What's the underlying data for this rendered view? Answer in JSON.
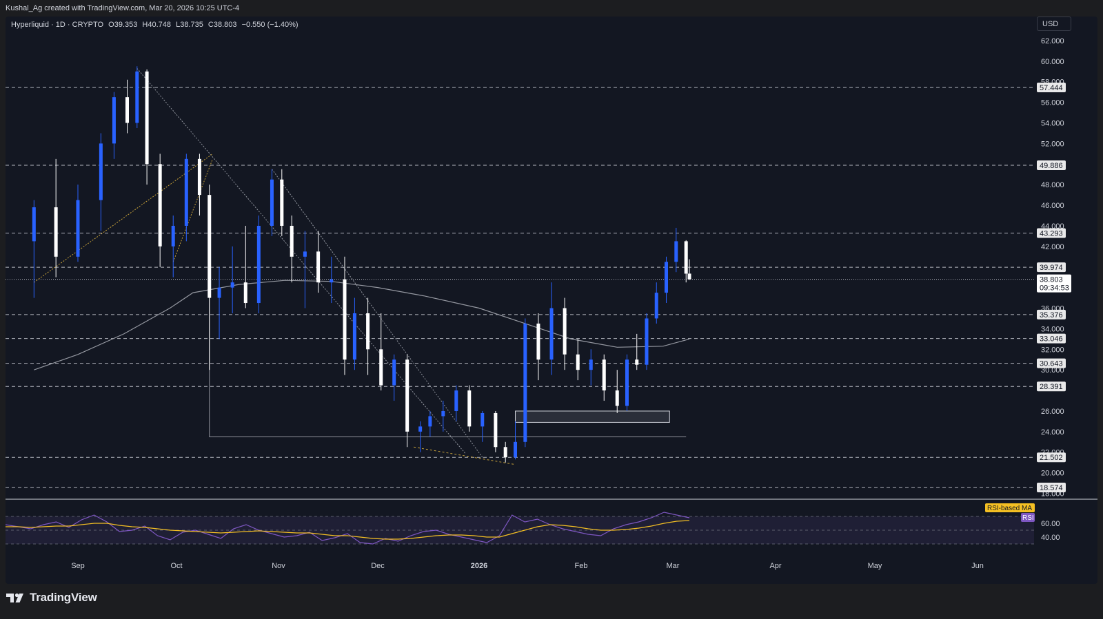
{
  "header": {
    "created_by": "Kushal_Ag created with TradingView.com, Mar 20, 2026 10:25 UTC-4",
    "symbol": "Hyperliquid · 1D · CRYPTO",
    "open": "O39.353",
    "high": "H40.748",
    "low": "L38.735",
    "close": "C38.803",
    "change": "−0.550 (−1.40%)",
    "currency": "USD"
  },
  "footer": {
    "brand": "TradingView"
  },
  "colors": {
    "background": "#131722",
    "bull_candle": "#2962ff",
    "bear_candle": "#ffffff",
    "ma_line": "#9598a1",
    "rsi_line": "#7e57c2",
    "rsi_ma_line": "#f5c023",
    "rsi_band": "#7e57c2"
  },
  "chart_data": [
    {
      "type": "candlestick",
      "timeframe": "1D",
      "price_axis": {
        "ticks": [
          "62.000",
          "60.000",
          "58.000",
          "56.000",
          "54.000",
          "52.000",
          "48.000",
          "46.000",
          "44.000",
          "42.000",
          "36.000",
          "34.000",
          "32.000",
          "30.000",
          "26.000",
          "24.000",
          "22.000",
          "20.000",
          "18.000"
        ],
        "range": [
          17.5,
          63
        ]
      },
      "time_axis": {
        "labels": [
          "Sep",
          "Oct",
          "Nov",
          "Dec",
          "2026",
          "Feb",
          "Mar",
          "Apr",
          "May",
          "Jun"
        ]
      },
      "horizontal_levels": [
        "57.444",
        "49.886",
        "43.293",
        "39.974",
        "35.376",
        "33.046",
        "30.643",
        "28.391",
        "21.502",
        "18.574"
      ],
      "last_price": {
        "value": "38.803",
        "countdown": "09:34:53"
      },
      "ohlc_series": [
        {
          "d": "Aug 18",
          "o": 42.5,
          "h": 46.5,
          "l": 37.0,
          "c": 45.8
        },
        {
          "d": "Aug 25",
          "o": 45.8,
          "h": 50.5,
          "l": 39.0,
          "c": 41.0
        },
        {
          "d": "Sep 1",
          "o": 41.0,
          "h": 48.0,
          "l": 40.5,
          "c": 46.5
        },
        {
          "d": "Sep 8",
          "o": 46.5,
          "h": 53.0,
          "l": 43.5,
          "c": 52.0
        },
        {
          "d": "Sep 12",
          "o": 52.0,
          "h": 57.0,
          "l": 50.5,
          "c": 56.5
        },
        {
          "d": "Sep 16",
          "o": 56.5,
          "h": 58.2,
          "l": 53.0,
          "c": 54.0
        },
        {
          "d": "Sep 19",
          "o": 54.0,
          "h": 59.5,
          "l": 53.5,
          "c": 59.0
        },
        {
          "d": "Sep 22",
          "o": 59.0,
          "h": 59.2,
          "l": 48.0,
          "c": 50.0
        },
        {
          "d": "Sep 26",
          "o": 50.0,
          "h": 51.0,
          "l": 40.0,
          "c": 42.0
        },
        {
          "d": "Sep 30",
          "o": 42.0,
          "h": 45.0,
          "l": 39.0,
          "c": 44.0
        },
        {
          "d": "Oct 4",
          "o": 44.0,
          "h": 51.0,
          "l": 42.5,
          "c": 50.5
        },
        {
          "d": "Oct 8",
          "o": 50.5,
          "h": 51.0,
          "l": 45.0,
          "c": 47.0
        },
        {
          "d": "Oct 11",
          "o": 47.0,
          "h": 48.0,
          "l": 30.0,
          "c": 37.0
        },
        {
          "d": "Oct 14",
          "o": 37.0,
          "h": 40.0,
          "l": 33.0,
          "c": 38.0
        },
        {
          "d": "Oct 18",
          "o": 38.0,
          "h": 42.0,
          "l": 35.5,
          "c": 38.5
        },
        {
          "d": "Oct 22",
          "o": 38.5,
          "h": 44.0,
          "l": 36.0,
          "c": 36.5
        },
        {
          "d": "Oct 26",
          "o": 36.5,
          "h": 45.0,
          "l": 35.5,
          "c": 44.0
        },
        {
          "d": "Oct 30",
          "o": 44.0,
          "h": 49.5,
          "l": 43.0,
          "c": 48.5
        },
        {
          "d": "Nov 2",
          "o": 48.5,
          "h": 49.5,
          "l": 43.0,
          "c": 44.0
        },
        {
          "d": "Nov 5",
          "o": 44.0,
          "h": 45.0,
          "l": 38.5,
          "c": 41.0
        },
        {
          "d": "Nov 9",
          "o": 41.0,
          "h": 43.5,
          "l": 36.0,
          "c": 41.5
        },
        {
          "d": "Nov 13",
          "o": 41.5,
          "h": 43.5,
          "l": 37.5,
          "c": 38.5
        },
        {
          "d": "Nov 17",
          "o": 38.5,
          "h": 41.0,
          "l": 36.5,
          "c": 38.8
        },
        {
          "d": "Nov 21",
          "o": 38.8,
          "h": 41.0,
          "l": 29.5,
          "c": 31.0
        },
        {
          "d": "Nov 24",
          "o": 31.0,
          "h": 37.0,
          "l": 30.0,
          "c": 35.5
        },
        {
          "d": "Nov 28",
          "o": 35.5,
          "h": 37.0,
          "l": 29.5,
          "c": 32.0
        },
        {
          "d": "Dec 2",
          "o": 32.0,
          "h": 35.5,
          "l": 28.0,
          "c": 28.5
        },
        {
          "d": "Dec 6",
          "o": 28.5,
          "h": 31.5,
          "l": 27.0,
          "c": 31.0
        },
        {
          "d": "Dec 10",
          "o": 31.0,
          "h": 31.5,
          "l": 22.5,
          "c": 24.0
        },
        {
          "d": "Dec 14",
          "o": 24.0,
          "h": 25.0,
          "l": 22.0,
          "c": 24.5
        },
        {
          "d": "Dec 17",
          "o": 24.5,
          "h": 26.0,
          "l": 23.5,
          "c": 25.5
        },
        {
          "d": "Dec 21",
          "o": 25.5,
          "h": 27.0,
          "l": 24.0,
          "c": 26.0
        },
        {
          "d": "Dec 25",
          "o": 26.0,
          "h": 28.5,
          "l": 25.0,
          "c": 28.0
        },
        {
          "d": "Dec 29",
          "o": 28.0,
          "h": 28.5,
          "l": 24.0,
          "c": 24.5
        },
        {
          "d": "Jan 2",
          "o": 24.5,
          "h": 26.0,
          "l": 23.0,
          "c": 25.8
        },
        {
          "d": "Jan 6",
          "o": 25.8,
          "h": 26.0,
          "l": 22.0,
          "c": 22.5
        },
        {
          "d": "Jan 9",
          "o": 22.5,
          "h": 23.0,
          "l": 21.0,
          "c": 21.5
        },
        {
          "d": "Jan 12",
          "o": 21.5,
          "h": 25.0,
          "l": 21.3,
          "c": 23.0
        },
        {
          "d": "Jan 15",
          "o": 23.0,
          "h": 35.0,
          "l": 22.5,
          "c": 34.5
        },
        {
          "d": "Jan 19",
          "o": 34.5,
          "h": 35.5,
          "l": 29.0,
          "c": 31.0
        },
        {
          "d": "Jan 23",
          "o": 31.0,
          "h": 38.5,
          "l": 29.5,
          "c": 36.0
        },
        {
          "d": "Jan 27",
          "o": 36.0,
          "h": 37.0,
          "l": 30.0,
          "c": 31.5
        },
        {
          "d": "Jan 31",
          "o": 31.5,
          "h": 33.0,
          "l": 29.0,
          "c": 30.0
        },
        {
          "d": "Feb 4",
          "o": 30.0,
          "h": 32.0,
          "l": 28.5,
          "c": 31.0
        },
        {
          "d": "Feb 8",
          "o": 31.0,
          "h": 31.5,
          "l": 27.0,
          "c": 28.0
        },
        {
          "d": "Feb 12",
          "o": 28.0,
          "h": 30.0,
          "l": 25.8,
          "c": 26.5
        },
        {
          "d": "Feb 15",
          "o": 26.5,
          "h": 31.5,
          "l": 26.0,
          "c": 31.0
        },
        {
          "d": "Feb 18",
          "o": 31.0,
          "h": 33.5,
          "l": 30.0,
          "c": 30.5
        },
        {
          "d": "Feb 21",
          "o": 30.5,
          "h": 35.5,
          "l": 30.0,
          "c": 35.0
        },
        {
          "d": "Feb 24",
          "o": 35.0,
          "h": 38.5,
          "l": 34.5,
          "c": 37.5
        },
        {
          "d": "Feb 27",
          "o": 37.5,
          "h": 41.0,
          "l": 36.5,
          "c": 40.5
        },
        {
          "d": "Mar 2",
          "o": 40.5,
          "h": 43.8,
          "l": 39.5,
          "c": 42.5
        },
        {
          "d": "Mar 5",
          "o": 42.5,
          "h": 42.6,
          "l": 38.5,
          "c": 39.35
        },
        {
          "d": "Mar 6",
          "o": 39.353,
          "h": 40.748,
          "l": 38.735,
          "c": 38.803
        }
      ],
      "moving_average": [
        {
          "d": "Aug 18",
          "v": 30.0
        },
        {
          "d": "Sep 1",
          "v": 31.5
        },
        {
          "d": "Sep 15",
          "v": 33.5
        },
        {
          "d": "Sep 29",
          "v": 36.0
        },
        {
          "d": "Oct 6",
          "v": 37.5
        },
        {
          "d": "Oct 20",
          "v": 38.3
        },
        {
          "d": "Nov 3",
          "v": 38.7
        },
        {
          "d": "Nov 17",
          "v": 38.6
        },
        {
          "d": "Dec 1",
          "v": 38.0
        },
        {
          "d": "Dec 15",
          "v": 37.2
        },
        {
          "d": "Jan 1",
          "v": 36.0
        },
        {
          "d": "Jan 15",
          "v": 34.5
        },
        {
          "d": "Jan 29",
          "v": 33.0
        },
        {
          "d": "Feb 12",
          "v": 32.2
        },
        {
          "d": "Feb 26",
          "v": 32.3
        },
        {
          "d": "Mar 6",
          "v": 33.0
        }
      ]
    },
    {
      "type": "line",
      "name": "RSI",
      "series": [
        {
          "name": "RSI",
          "values": [
            58,
            55,
            52,
            58,
            62,
            54,
            65,
            72,
            62,
            48,
            50,
            56,
            42,
            36,
            47,
            50,
            44,
            38,
            52,
            58,
            50,
            45,
            40,
            42,
            47,
            35,
            39,
            45,
            32,
            30,
            38,
            34,
            42,
            48,
            50,
            44,
            40,
            36,
            32,
            42,
            72,
            62,
            66,
            58,
            52,
            48,
            44,
            42,
            52,
            58,
            62,
            68,
            76,
            72,
            68
          ]
        },
        {
          "name": "RSI-based MA",
          "values": [
            55,
            55,
            54,
            55,
            56,
            56,
            58,
            60,
            60,
            57,
            55,
            54,
            52,
            50,
            49,
            48,
            47,
            46,
            47,
            48,
            49,
            48,
            47,
            46,
            46,
            44,
            42,
            42,
            40,
            38,
            37,
            37,
            38,
            40,
            42,
            43,
            43,
            42,
            40,
            40,
            45,
            50,
            55,
            58,
            57,
            55,
            52,
            50,
            50,
            51,
            53,
            56,
            60,
            63,
            64
          ]
        }
      ],
      "ticks": [
        "60.00",
        "40.00"
      ],
      "legend": [
        "RSI-based MA",
        "RSI"
      ],
      "range": [
        20,
        80
      ]
    }
  ]
}
